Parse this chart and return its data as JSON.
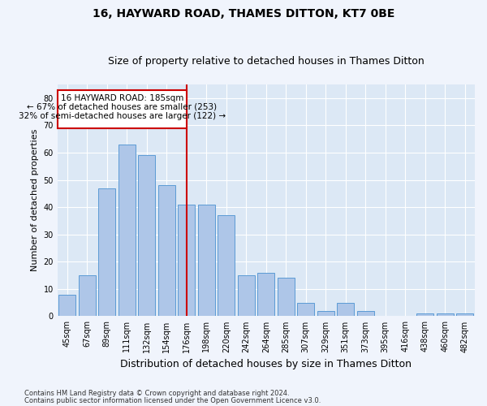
{
  "title1": "16, HAYWARD ROAD, THAMES DITTON, KT7 0BE",
  "title2": "Size of property relative to detached houses in Thames Ditton",
  "xlabel": "Distribution of detached houses by size in Thames Ditton",
  "ylabel": "Number of detached properties",
  "categories": [
    "45sqm",
    "67sqm",
    "89sqm",
    "111sqm",
    "132sqm",
    "154sqm",
    "176sqm",
    "198sqm",
    "220sqm",
    "242sqm",
    "264sqm",
    "285sqm",
    "307sqm",
    "329sqm",
    "351sqm",
    "373sqm",
    "395sqm",
    "416sqm",
    "438sqm",
    "460sqm",
    "482sqm"
  ],
  "values": [
    8,
    15,
    47,
    63,
    59,
    48,
    41,
    41,
    37,
    15,
    16,
    14,
    5,
    2,
    5,
    2,
    0,
    0,
    1,
    1,
    1
  ],
  "bar_color": "#aec6e8",
  "bar_edge_color": "#5b9bd5",
  "vline_x_index": 6,
  "annotation_text1": "16 HAYWARD ROAD: 185sqm",
  "annotation_text2": "← 67% of detached houses are smaller (253)",
  "annotation_text3": "32% of semi-detached houses are larger (122) →",
  "annotation_box_color": "#ffffff",
  "annotation_box_edge_color": "#cc0000",
  "vline_color": "#cc0000",
  "footer1": "Contains HM Land Registry data © Crown copyright and database right 2024.",
  "footer2": "Contains public sector information licensed under the Open Government Licence v3.0.",
  "ylim": [
    0,
    85
  ],
  "yticks": [
    0,
    10,
    20,
    30,
    40,
    50,
    60,
    70,
    80
  ],
  "fig_bg_color": "#f0f4fc",
  "ax_bg_color": "#dce8f5",
  "title1_fontsize": 10,
  "title2_fontsize": 9,
  "tick_fontsize": 7,
  "ylabel_fontsize": 8,
  "xlabel_fontsize": 9
}
